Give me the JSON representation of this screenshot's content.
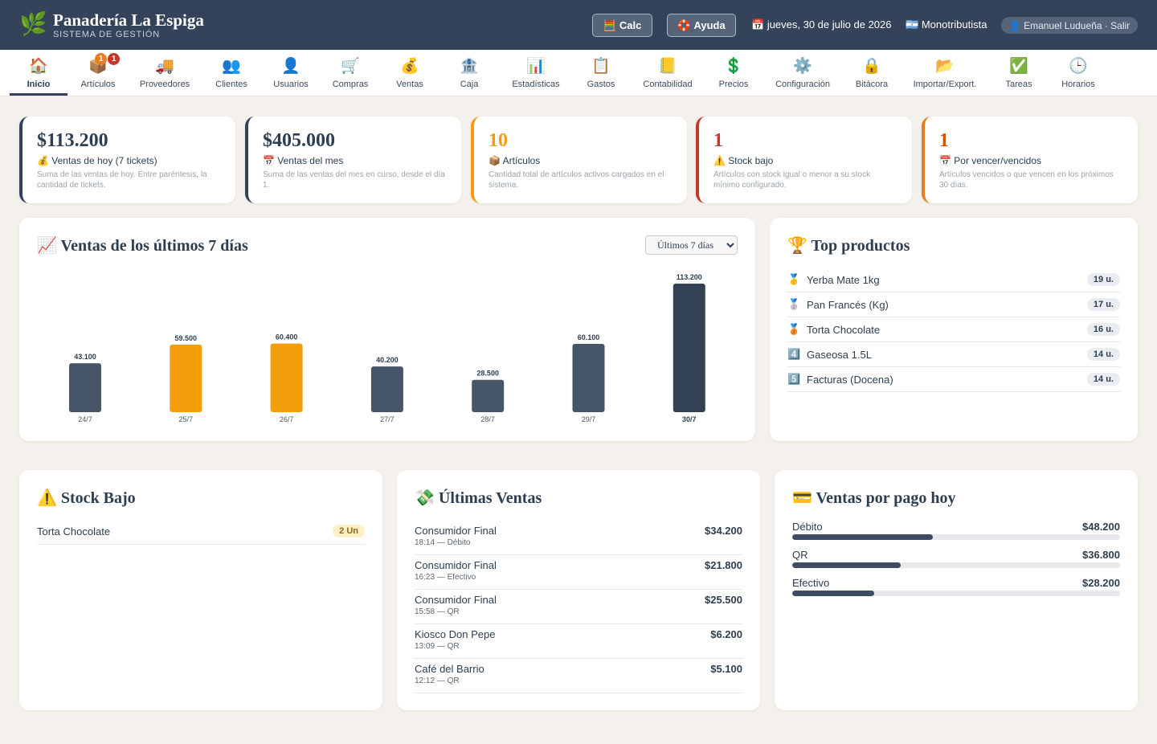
{
  "header": {
    "brand_title": "Panadería La Espiga",
    "brand_subtitle": "SISTEMA DE GESTIÓN",
    "calc_label": "Calc",
    "help_label": "Ayuda",
    "date": "jueves, 30 de julio de 2026",
    "tax_status": "Monotributista",
    "user": "Emanuel Ludueña · Salir"
  },
  "nav": [
    {
      "label": "Inicio",
      "icon": "🏠",
      "active": true
    },
    {
      "label": "Artículos",
      "icon": "📦",
      "badges": [
        "1",
        "1"
      ]
    },
    {
      "label": "Proveedores",
      "icon": "🚚"
    },
    {
      "label": "Clientes",
      "icon": "👥"
    },
    {
      "label": "Usuarios",
      "icon": "👤"
    },
    {
      "label": "Compras",
      "icon": "🛒"
    },
    {
      "label": "Ventas",
      "icon": "💰"
    },
    {
      "label": "Caja",
      "icon": "🏦"
    },
    {
      "label": "Estadísticas",
      "icon": "📊"
    },
    {
      "label": "Gastos",
      "icon": "📋"
    },
    {
      "label": "Contabilidad",
      "icon": "📒"
    },
    {
      "label": "Precios",
      "icon": "💲"
    },
    {
      "label": "Configuración",
      "icon": "⚙️"
    },
    {
      "label": "Bitácora",
      "icon": "🔒"
    },
    {
      "label": "Importar/Export.",
      "icon": "📂"
    },
    {
      "label": "Tareas",
      "icon": "✅"
    },
    {
      "label": "Horarios",
      "icon": "🕒"
    }
  ],
  "kpis": [
    {
      "value": "$113.200",
      "title": "💰 Ventas de hoy (7 tickets)",
      "desc": "Suma de las ventas de hoy. Entre paréntesis, la cantidad de tickets.",
      "color": "#34435a"
    },
    {
      "value": "$405.000",
      "title": "📅 Ventas del mes",
      "desc": "Suma de las ventas del mes en curso, desde el día 1.",
      "color": "#34435a"
    },
    {
      "value": "10",
      "title": "📦 Artículos",
      "desc": "Cantidad total de artículos activos cargados en el sistema.",
      "color": "#f39c12"
    },
    {
      "value": "1",
      "title": "⚠️ Stock bajo",
      "desc": "Artículos con stock igual o menor a su stock mínimo configurado.",
      "color": "#c0392b"
    },
    {
      "value": "1",
      "title": "📅 Por vencer/vencidos",
      "desc": "Artículos vencidos o que vencen en los próximos 30 días.",
      "color": "#e67e22"
    }
  ],
  "sales_chart": {
    "title": "📈 Ventas de los últimos 7 días",
    "range_options": [
      "Últimos 7 días"
    ],
    "range_selected": "Últimos 7 días"
  },
  "chart_data": {
    "type": "bar",
    "categories": [
      "24/7",
      "25/7",
      "26/7",
      "27/7",
      "28/7",
      "29/7",
      "30/7"
    ],
    "values": [
      43100,
      59500,
      60400,
      40200,
      28500,
      60100,
      113200
    ],
    "value_labels": [
      "43.100",
      "59.500",
      "60.400",
      "40.200",
      "28.500",
      "60.100",
      "113.200"
    ],
    "highlighted": [
      false,
      true,
      true,
      false,
      false,
      false,
      false
    ],
    "current_index": 6,
    "colors": {
      "default": "#475569",
      "highlight": "#f59e0b",
      "current": "#334155"
    },
    "ylim": [
      0,
      113200
    ],
    "grid": false
  },
  "top_products": {
    "title": "🏆 Top productos",
    "items": [
      {
        "medal": "🥇",
        "name": "Yerba Mate 1kg",
        "qty": "19 u."
      },
      {
        "medal": "🥈",
        "name": "Pan Francés (Kg)",
        "qty": "17 u."
      },
      {
        "medal": "🥉",
        "name": "Torta Chocolate",
        "qty": "16 u."
      },
      {
        "medal": "4️⃣",
        "name": "Gaseosa 1.5L",
        "qty": "14 u."
      },
      {
        "medal": "5️⃣",
        "name": "Facturas (Docena)",
        "qty": "14 u."
      }
    ]
  },
  "low_stock": {
    "title": "⚠️ Stock Bajo",
    "items": [
      {
        "name": "Torta Chocolate",
        "units": "2 Un"
      }
    ]
  },
  "last_sales": {
    "title": "💸 Últimas Ventas",
    "items": [
      {
        "client": "Consumidor Final",
        "meta": "18:14 — Débito",
        "amount": "$34.200"
      },
      {
        "client": "Consumidor Final",
        "meta": "16:23 — Efectivo",
        "amount": "$21.800"
      },
      {
        "client": "Consumidor Final",
        "meta": "15:58 — QR",
        "amount": "$25.500"
      },
      {
        "client": "Kiosco Don Pepe",
        "meta": "13:09 — QR",
        "amount": "$6.200"
      },
      {
        "client": "Café del Barrio",
        "meta": "12:12 — QR",
        "amount": "$5.100"
      }
    ]
  },
  "payments": {
    "title": "💳 Ventas por pago hoy",
    "items": [
      {
        "method": "Débito",
        "amount": "$48.200",
        "share": 0.43
      },
      {
        "method": "QR",
        "amount": "$36.800",
        "share": 0.33
      },
      {
        "method": "Efectivo",
        "amount": "$28.200",
        "share": 0.25
      }
    ]
  }
}
